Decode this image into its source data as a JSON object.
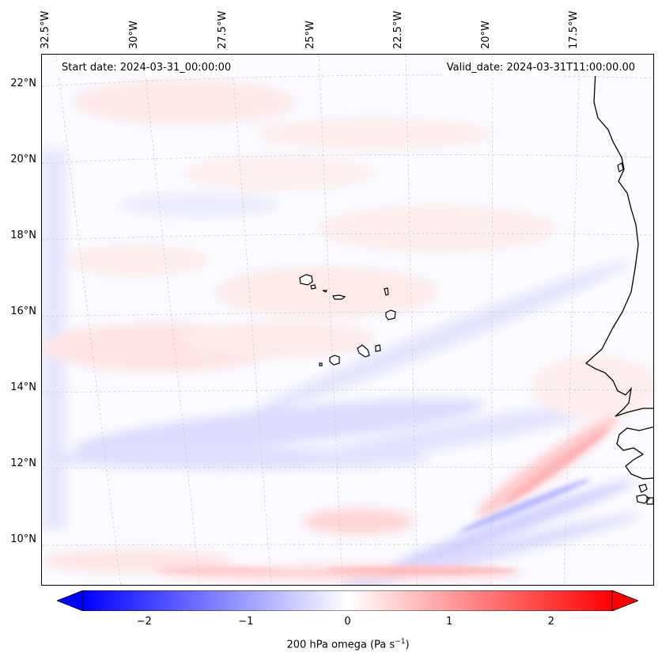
{
  "map": {
    "start_date_text": "Start date: 2024-03-31_00:00:00",
    "valid_date_text": "Valid_date: 2024-03-31T11:00:00.00",
    "lon_labels": [
      "32.5°W",
      "30°W",
      "27.5°W",
      "25°W",
      "22.5°W",
      "20°W",
      "17.5°W"
    ],
    "lat_labels": [
      "22°N",
      "20°N",
      "18°N",
      "16°N",
      "14°N",
      "12°N",
      "10°N"
    ],
    "region": "Cape Verde Islands and West African coast",
    "colors": {
      "negative": "#0000ff",
      "zero": "#ffffff",
      "positive": "#ff0000",
      "coastline": "#000000",
      "gridline": "#c8c8c8"
    }
  },
  "colorbar": {
    "ticks": [
      "−2",
      "−1",
      "0",
      "1",
      "2"
    ],
    "min": -2.6,
    "max": 2.6,
    "label_prefix": "200 hPa omega (Pa s",
    "label_exp": "−1",
    "label_suffix": ")"
  }
}
